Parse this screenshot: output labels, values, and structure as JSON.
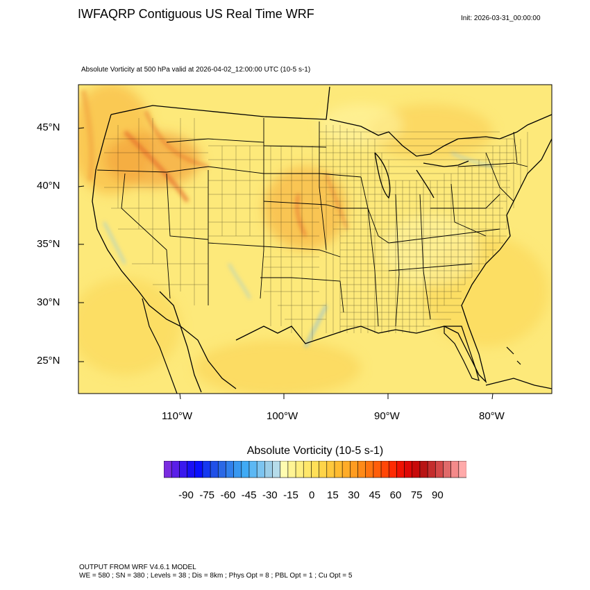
{
  "header": {
    "title": "IWFAQRP Contiguous US Real Time WRF",
    "init": "Init: 2026-03-31_00:00:00",
    "subtitle": "Absolute Vorticity at 500 hPa valid at 2026-04-02_12:00:00 UTC   (10-5 s-1)"
  },
  "map": {
    "lat_labels": [
      "45°N",
      "40°N",
      "35°N",
      "30°N",
      "25°N"
    ],
    "lon_labels": [
      "110°W",
      "100°W",
      "90°W",
      "80°W"
    ],
    "background_color": "#fde97a",
    "land_tint": "#fff3a0",
    "accent_orange": "#f9b938",
    "accent_red": "#e8752a",
    "accent_blue": "#8ec6e8",
    "ocean_color": "#fde36a"
  },
  "colorbar": {
    "title": "Absolute Vorticity  (10-5 s-1)",
    "tick_labels": [
      "-90",
      "-75",
      "-60",
      "-45",
      "-30",
      "-15",
      "0",
      "15",
      "30",
      "45",
      "60",
      "75",
      "90"
    ],
    "colors": [
      "#7a2ce0",
      "#5a1fe8",
      "#3a18ee",
      "#1a10f4",
      "#0a10ff",
      "#1538f0",
      "#2050e8",
      "#2a68e6",
      "#3080ec",
      "#3898f0",
      "#40aaf4",
      "#5cb8f4",
      "#7cc4f0",
      "#9ccee8",
      "#b6dcea",
      "#fffcb0",
      "#fff494",
      "#ffee80",
      "#ffe76a",
      "#ffdf58",
      "#ffd448",
      "#ffc83c",
      "#ffbb30",
      "#ffac28",
      "#ff9c20",
      "#ff8a18",
      "#ff7410",
      "#ff5e0a",
      "#ff4606",
      "#ff2a02",
      "#f01202",
      "#de0806",
      "#c80a0a",
      "#b81414",
      "#c42c2c",
      "#d44848",
      "#e06a6a",
      "#f48a8a",
      "#ffaaaa"
    ]
  },
  "footer": {
    "line1": "OUTPUT FROM WRF V4.6.1 MODEL",
    "line2": "WE = 580 ; SN = 380 ; Levels = 38 ; Dis = 8km ; Phys Opt = 8 ; PBL Opt = 1 ; Cu Opt = 5"
  }
}
